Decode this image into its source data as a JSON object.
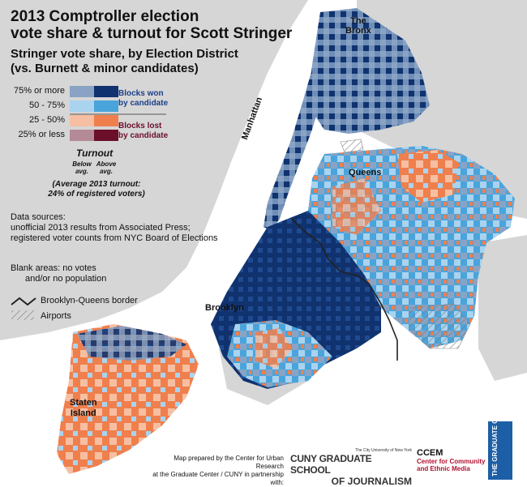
{
  "title": {
    "line1": "2013 Comptroller election",
    "line2": "vote share & turnout for Scott Stringer",
    "sub1": "Stringer vote share, by Election District",
    "sub2": "(vs. Burnett & minor candidates)"
  },
  "legend": {
    "rows": [
      {
        "label": "75% or more",
        "below": "#8aa3c4",
        "above": "#10326f"
      },
      {
        "label": "50 - 75%",
        "below": "#a9d3ef",
        "above": "#4aa4dc"
      },
      {
        "label": "25 - 50%",
        "below": "#f6bfa2",
        "above": "#ef7f4d"
      },
      {
        "label": "25% or less",
        "below": "#b48a96",
        "above": "#6b0f2a"
      }
    ],
    "won_line1": "Blocks won",
    "won_line2": "by candidate",
    "lost_line1": "Blocks lost",
    "lost_line2": "by candidate",
    "turnout": "Turnout",
    "below1": "Below",
    "below2": "avg.",
    "above1": "Above",
    "above2": "avg.",
    "avg1": "(Average 2013 turnout:",
    "avg2": "24% of registered voters)"
  },
  "sources": {
    "line1": "Data sources:",
    "line2": "unofficial 2013 results from Associated Press;",
    "line3": "registered voter counts from NYC Board of Elections"
  },
  "blank": {
    "line1": "Blank areas: no votes",
    "line2": "and/or no population"
  },
  "border_label": "Brooklyn-Queens border",
  "airports_label": "Airports",
  "boroughs": {
    "bronx1": "The",
    "bronx2": "Bronx",
    "manhattan": "Manhattan",
    "queens": "Queens",
    "brooklyn": "Brooklyn",
    "staten1": "Staten",
    "staten2": "Island"
  },
  "credit": {
    "line1": "Map prepared by the Center for Urban Research",
    "line2": "at the Graduate Center / CUNY in partnership with:"
  },
  "logos": {
    "cuny_small": "The City University of New York",
    "cuny_big1": "CUNY GRADUATE SCHOOL",
    "cuny_big2": "OF JOURNALISM",
    "ccem1": "CCEM",
    "ccem2": "Center for Community",
    "ccem3": "and Ethnic Media",
    "gc": "THE GRADUATE CENTER"
  },
  "colors": {
    "water": "#ffffff",
    "land_gray": "#d6d6d6",
    "border_line": "#222222"
  }
}
